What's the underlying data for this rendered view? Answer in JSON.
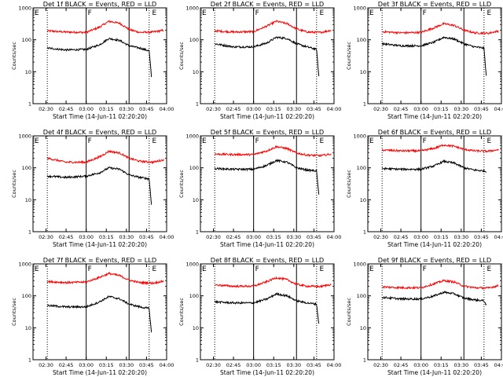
{
  "figure": {
    "background": "#ffffff",
    "axis_color": "#000000",
    "events_color": "#000000",
    "lld_color": "#ff0000",
    "y_label": "Counts/sec",
    "x_label": "Start Time (14-Jun-11 02:20:20)",
    "markers": [
      {
        "label": "E",
        "time": "02:22:30",
        "style": "dotted"
      },
      {
        "label": "F",
        "time": "03:00:00",
        "style": "solid"
      }
    ],
    "dotted_lines": [
      "02:31:00",
      "03:47:00"
    ],
    "solid_lines": [
      "03:00:00",
      "03:32:00"
    ],
    "marker_E2_time": "03:48:00"
  },
  "chart_data": [
    {
      "type": "line",
      "title": "Det 1f BLACK = Events, RED = LLD",
      "xlabel": "Start Time (14-Jun-11 02:20:20)",
      "ylabel": "Counts/sec",
      "log_y": true,
      "ylim": [
        1,
        1000
      ],
      "x_ticks": [
        "02:30",
        "02:45",
        "03:00",
        "03:15",
        "03:30",
        "03:45",
        "04:00"
      ],
      "y_ticks": [
        "1",
        "10",
        "100",
        "1000"
      ],
      "series": [
        {
          "x": [
            "02:31",
            "02:45",
            "03:00",
            "03:10",
            "03:17",
            "03:25",
            "03:32",
            "03:40",
            "03:50",
            "03:58"
          ],
          "values": [
            190,
            175,
            170,
            250,
            380,
            330,
            210,
            170,
            175,
            200
          ]
        },
        {
          "x": [
            "02:31",
            "02:45",
            "03:00",
            "03:10",
            "03:17",
            "03:25",
            "03:32",
            "03:40",
            "03:47",
            "03:49"
          ],
          "values": [
            55,
            48,
            50,
            70,
            110,
            95,
            65,
            55,
            45,
            5
          ]
        }
      ]
    },
    {
      "type": "line",
      "title": "Det 2f BLACK = Events, RED = LLD",
      "xlabel": "Start Time (14-Jun-11 02:20:20)",
      "ylabel": "Counts/sec",
      "log_y": true,
      "ylim": [
        1,
        1000
      ],
      "x_ticks": [
        "02:30",
        "02:45",
        "03:00",
        "03:15",
        "03:30",
        "03:45",
        "04:00"
      ],
      "y_ticks": [
        "1",
        "10",
        "100",
        "1000"
      ],
      "series": [
        {
          "x": [
            "02:31",
            "02:45",
            "03:00",
            "03:10",
            "03:17",
            "03:25",
            "03:32",
            "03:40",
            "03:50",
            "03:58"
          ],
          "values": [
            190,
            175,
            180,
            270,
            380,
            320,
            220,
            175,
            170,
            200
          ]
        },
        {
          "x": [
            "02:31",
            "02:45",
            "03:00",
            "03:10",
            "03:17",
            "03:25",
            "03:32",
            "03:40",
            "03:47",
            "03:49"
          ],
          "values": [
            75,
            60,
            60,
            80,
            120,
            110,
            75,
            60,
            50,
            5
          ]
        }
      ]
    },
    {
      "type": "line",
      "title": "Det 3f BLACK = Events, RED = LLD",
      "xlabel": "Start Time (14-Jun-11 02:20:20)",
      "ylabel": "Counts/sec",
      "log_y": true,
      "ylim": [
        1,
        1000
      ],
      "x_ticks": [
        "02:30",
        "02:45",
        "03:00",
        "03:15",
        "03:30",
        "03:45",
        "04:00"
      ],
      "y_ticks": [
        "1",
        "10",
        "100",
        "1000"
      ],
      "series": [
        {
          "x": [
            "02:31",
            "02:45",
            "03:00",
            "03:10",
            "03:17",
            "03:25",
            "03:32",
            "03:40",
            "03:50",
            "03:58"
          ],
          "values": [
            180,
            165,
            170,
            240,
            320,
            280,
            200,
            165,
            160,
            190
          ]
        },
        {
          "x": [
            "02:31",
            "02:45",
            "03:00",
            "03:10",
            "03:17",
            "03:25",
            "03:32",
            "03:40",
            "03:47",
            "03:49"
          ],
          "values": [
            75,
            65,
            65,
            85,
            120,
            105,
            75,
            60,
            55,
            5
          ]
        }
      ]
    },
    {
      "type": "line",
      "title": "Det 4f BLACK = Events, RED = LLD",
      "xlabel": "Start Time (14-Jun-11 02:20:20)",
      "ylabel": "Counts/sec",
      "log_y": true,
      "ylim": [
        1,
        1000
      ],
      "x_ticks": [
        "02:30",
        "02:45",
        "03:00",
        "03:15",
        "03:30",
        "03:45",
        "04:00"
      ],
      "y_ticks": [
        "1",
        "10",
        "100",
        "1000"
      ],
      "series": [
        {
          "x": [
            "02:31",
            "02:45",
            "03:00",
            "03:10",
            "03:17",
            "03:25",
            "03:32",
            "03:40",
            "03:50",
            "03:58"
          ],
          "values": [
            200,
            150,
            150,
            220,
            330,
            290,
            200,
            160,
            150,
            180
          ]
        },
        {
          "x": [
            "02:31",
            "02:45",
            "03:00",
            "03:10",
            "03:17",
            "03:25",
            "03:32",
            "03:40",
            "03:47",
            "03:49"
          ],
          "values": [
            55,
            50,
            55,
            70,
            100,
            90,
            60,
            50,
            45,
            5
          ]
        }
      ]
    },
    {
      "type": "line",
      "title": "Det 5f BLACK = Events, RED = LLD",
      "xlabel": "Start Time (14-Jun-11 02:20:20)",
      "ylabel": "Counts/sec",
      "log_y": true,
      "ylim": [
        1,
        1000
      ],
      "x_ticks": [
        "02:30",
        "02:45",
        "03:00",
        "03:15",
        "03:30",
        "03:45",
        "04:00"
      ],
      "y_ticks": [
        "1",
        "10",
        "100",
        "1000"
      ],
      "series": [
        {
          "x": [
            "02:31",
            "02:45",
            "03:00",
            "03:10",
            "03:17",
            "03:25",
            "03:32",
            "03:40",
            "03:50",
            "03:58"
          ],
          "values": [
            270,
            260,
            260,
            340,
            460,
            400,
            290,
            250,
            240,
            270
          ]
        },
        {
          "x": [
            "02:31",
            "02:45",
            "03:00",
            "03:10",
            "03:17",
            "03:25",
            "03:32",
            "03:40",
            "03:47",
            "03:49"
          ],
          "values": [
            95,
            90,
            90,
            120,
            170,
            150,
            100,
            85,
            80,
            10
          ]
        }
      ]
    },
    {
      "type": "line",
      "title": "Det 6f BLACK = Events, RED = LLD",
      "xlabel": "Start Time (14-Jun-11 02:20:20)",
      "ylabel": "Counts/sec",
      "log_y": true,
      "ylim": [
        1,
        1000
      ],
      "x_ticks": [
        "02:30",
        "02:45",
        "03:00",
        "03:15",
        "03:30",
        "03:45",
        "04:00"
      ],
      "y_ticks": [
        "1",
        "10",
        "100",
        "1000"
      ],
      "series": [
        {
          "x": [
            "02:31",
            "02:45",
            "03:00",
            "03:10",
            "03:17",
            "03:25",
            "03:32",
            "03:40",
            "03:50",
            "03:58"
          ],
          "values": [
            360,
            340,
            340,
            410,
            520,
            470,
            380,
            340,
            330,
            370
          ]
        },
        {
          "x": [
            "02:31",
            "02:45",
            "03:00",
            "03:10",
            "03:17",
            "03:25",
            "03:32",
            "03:40",
            "03:47",
            "03:49"
          ],
          "values": [
            95,
            90,
            90,
            115,
            160,
            140,
            100,
            85,
            80,
            75
          ]
        }
      ]
    },
    {
      "type": "line",
      "title": "Det 7f BLACK = Events, RED = LLD",
      "xlabel": "Start Time (14-Jun-11 02:20:20)",
      "ylabel": "Counts/sec",
      "log_y": true,
      "ylim": [
        1,
        1000
      ],
      "x_ticks": [
        "02:30",
        "02:45",
        "03:00",
        "03:15",
        "03:30",
        "03:45",
        "04:00"
      ],
      "y_ticks": [
        "1",
        "10",
        "100",
        "1000"
      ],
      "series": [
        {
          "x": [
            "02:31",
            "02:45",
            "03:00",
            "03:10",
            "03:17",
            "03:25",
            "03:32",
            "03:40",
            "03:50",
            "03:58"
          ],
          "values": [
            280,
            260,
            270,
            380,
            500,
            430,
            310,
            260,
            250,
            290
          ]
        },
        {
          "x": [
            "02:31",
            "02:45",
            "03:00",
            "03:10",
            "03:17",
            "03:25",
            "03:32",
            "03:40",
            "03:47",
            "03:49"
          ],
          "values": [
            50,
            45,
            45,
            65,
            95,
            80,
            55,
            45,
            40,
            5
          ]
        }
      ]
    },
    {
      "type": "line",
      "title": "Det 8f BLACK = Events, RED = LLD",
      "xlabel": "Start Time (14-Jun-11 02:20:20)",
      "ylabel": "Counts/sec",
      "log_y": true,
      "ylim": [
        1,
        1000
      ],
      "x_ticks": [
        "02:30",
        "02:45",
        "03:00",
        "03:15",
        "03:30",
        "03:45",
        "04:00"
      ],
      "y_ticks": [
        "1",
        "10",
        "100",
        "1000"
      ],
      "series": [
        {
          "x": [
            "02:31",
            "02:45",
            "03:00",
            "03:10",
            "03:17",
            "03:25",
            "03:32",
            "03:40",
            "03:50",
            "03:58"
          ],
          "values": [
            220,
            200,
            200,
            280,
            370,
            320,
            230,
            200,
            195,
            230
          ]
        },
        {
          "x": [
            "02:31",
            "02:45",
            "03:00",
            "03:10",
            "03:17",
            "03:25",
            "03:32",
            "03:40",
            "03:47",
            "03:49"
          ],
          "values": [
            65,
            60,
            60,
            80,
            115,
            100,
            70,
            60,
            55,
            10
          ]
        }
      ]
    },
    {
      "type": "line",
      "title": "Det 9f BLACK = Events, RED = LLD",
      "xlabel": "Start Time (14-Jun-11 02:20:20)",
      "ylabel": "Counts/sec",
      "log_y": true,
      "ylim": [
        1,
        1000
      ],
      "x_ticks": [
        "02:30",
        "02:45",
        "03:00",
        "03:15",
        "03:30",
        "03:45",
        "04:00"
      ],
      "y_ticks": [
        "1",
        "10",
        "100",
        "1000"
      ],
      "series": [
        {
          "x": [
            "02:31",
            "02:45",
            "03:00",
            "03:10",
            "03:17",
            "03:25",
            "03:32",
            "03:40",
            "03:50",
            "03:58"
          ],
          "values": [
            190,
            180,
            180,
            240,
            300,
            270,
            200,
            180,
            175,
            210
          ]
        },
        {
          "x": [
            "02:31",
            "02:45",
            "03:00",
            "03:10",
            "03:17",
            "03:25",
            "03:32",
            "03:40",
            "03:47",
            "03:49"
          ],
          "values": [
            90,
            80,
            80,
            100,
            130,
            115,
            85,
            75,
            70,
            50
          ]
        }
      ]
    }
  ]
}
